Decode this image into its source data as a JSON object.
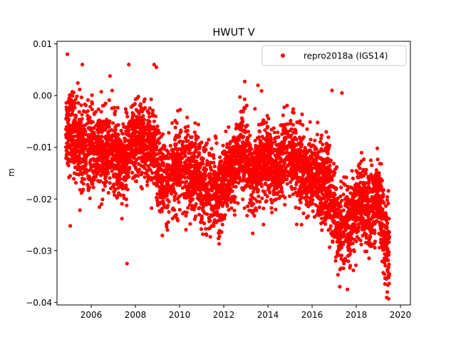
{
  "chart_data": {
    "type": "scatter",
    "title": "HWUT V",
    "xlabel": "",
    "ylabel": "m",
    "xlim": [
      2004.45,
      2020.45
    ],
    "ylim": [
      -0.0405,
      0.0105
    ],
    "xticks": [
      2006,
      2008,
      2010,
      2012,
      2014,
      2016,
      2018,
      2020
    ],
    "yticks": [
      0.01,
      0.0,
      -0.01,
      -0.02,
      -0.03,
      -0.04
    ],
    "xtick_labels": [
      "2006",
      "2008",
      "2010",
      "2012",
      "2014",
      "2016",
      "2018",
      "2020"
    ],
    "ytick_labels": [
      "0.01",
      "0.00",
      "−0.01",
      "−0.02",
      "−0.03",
      "−0.04"
    ],
    "grid": false,
    "legend": {
      "position": "top-right",
      "entries": [
        "repro2018a (IGS14)"
      ]
    },
    "marker_color": "#ff0000",
    "series": [
      {
        "name": "repro2018a (IGS14)",
        "x_range": [
          2004.85,
          2019.5
        ],
        "trend": [
          [
            2004.85,
            -0.006
          ],
          [
            2005.5,
            -0.009
          ],
          [
            2006.0,
            -0.01
          ],
          [
            2006.5,
            -0.011
          ],
          [
            2007.0,
            -0.011
          ],
          [
            2007.4,
            -0.013
          ],
          [
            2008.0,
            -0.008
          ],
          [
            2008.8,
            -0.01
          ],
          [
            2009.3,
            -0.017
          ],
          [
            2009.8,
            -0.014
          ],
          [
            2010.3,
            -0.014
          ],
          [
            2010.8,
            -0.016
          ],
          [
            2011.3,
            -0.018
          ],
          [
            2011.8,
            -0.019
          ],
          [
            2012.3,
            -0.015
          ],
          [
            2012.8,
            -0.01
          ],
          [
            2013.3,
            -0.016
          ],
          [
            2013.8,
            -0.012
          ],
          [
            2014.3,
            -0.015
          ],
          [
            2014.8,
            -0.011
          ],
          [
            2015.3,
            -0.013
          ],
          [
            2015.7,
            -0.015
          ],
          [
            2016.2,
            -0.016
          ],
          [
            2016.7,
            -0.017
          ],
          [
            2017.2,
            -0.026
          ],
          [
            2017.7,
            -0.025
          ],
          [
            2018.2,
            -0.02
          ],
          [
            2018.6,
            -0.023
          ],
          [
            2019.0,
            -0.018
          ],
          [
            2019.3,
            -0.028
          ],
          [
            2019.5,
            -0.03
          ]
        ],
        "scatter_sd": 0.0038,
        "outliers": [
          [
            2004.92,
            0.008
          ],
          [
            2005.05,
            -0.0252
          ],
          [
            2005.6,
            0.006
          ],
          [
            2006.85,
            0.0038
          ],
          [
            2007.62,
            -0.0325
          ],
          [
            2007.7,
            0.006
          ],
          [
            2008.85,
            0.006
          ],
          [
            2008.95,
            0.0055
          ],
          [
            2013.55,
            0.002
          ],
          [
            2016.9,
            0.001
          ],
          [
            2017.6,
            -0.0375
          ],
          [
            2019.4,
            -0.038
          ],
          [
            2017.35,
            0.0005
          ]
        ]
      }
    ]
  }
}
